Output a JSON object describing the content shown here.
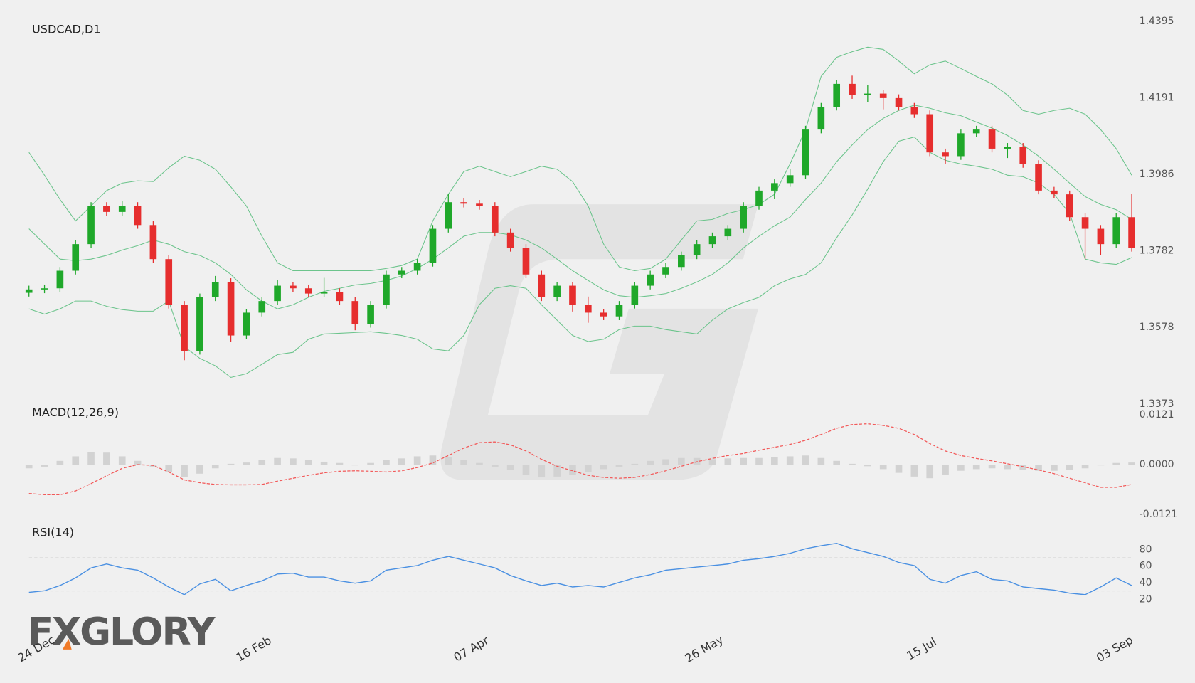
{
  "logo": "FXGLORY",
  "chart_data": [
    {
      "type": "candlestick",
      "title": "USDCAD,D1",
      "categories": [
        "24 Dec",
        null,
        null,
        null,
        null,
        null,
        null,
        null,
        null,
        null,
        null,
        null,
        null,
        null,
        "16 Feb",
        null,
        null,
        null,
        null,
        null,
        null,
        null,
        null,
        null,
        null,
        null,
        null,
        null,
        "07 Apr",
        null,
        null,
        null,
        null,
        null,
        null,
        null,
        null,
        null,
        null,
        null,
        null,
        null,
        null,
        "26 May",
        null,
        null,
        null,
        null,
        null,
        null,
        null,
        null,
        null,
        null,
        null,
        null,
        null,
        "15 Jul",
        null,
        null,
        null,
        null,
        null,
        null,
        null,
        null,
        null,
        null,
        null,
        null,
        null,
        "03 Sep"
      ],
      "open": [
        1.367,
        1.3679,
        1.3682,
        1.3729,
        1.38,
        1.3902,
        1.3886,
        1.3902,
        1.3851,
        1.376,
        1.3638,
        1.3515,
        1.3658,
        1.3699,
        1.3556,
        1.3617,
        1.3648,
        1.3689,
        1.3682,
        1.3668,
        1.3672,
        1.3648,
        1.3587,
        1.3638,
        1.3719,
        1.3729,
        1.375,
        1.3841,
        1.3912,
        1.3908,
        1.3902,
        1.3831,
        1.379,
        1.3719,
        1.3658,
        1.3689,
        1.3638,
        1.3617,
        1.3607,
        1.3638,
        1.3689,
        1.3719,
        1.3739,
        1.377,
        1.38,
        1.3821,
        1.3841,
        1.3902,
        1.3943,
        1.3963,
        1.3984,
        1.4106,
        1.4167,
        1.4228,
        1.4198,
        1.4202,
        1.419,
        1.4167,
        1.4147,
        1.4045,
        1.4035,
        1.4096,
        1.4106,
        1.4055,
        1.406,
        1.4014,
        1.3943,
        1.3933,
        1.3872,
        1.3841,
        1.38,
        1.3872
      ],
      "high": [
        1.3689,
        1.3692,
        1.3739,
        1.381,
        1.3912,
        1.3912,
        1.3915,
        1.3912,
        1.3861,
        1.377,
        1.3648,
        1.3668,
        1.3715,
        1.3709,
        1.3627,
        1.3658,
        1.3705,
        1.3699,
        1.3692,
        1.371,
        1.3682,
        1.3658,
        1.3648,
        1.3729,
        1.3739,
        1.376,
        1.3851,
        1.3935,
        1.3922,
        1.3918,
        1.3912,
        1.3841,
        1.38,
        1.3729,
        1.3699,
        1.3699,
        1.366,
        1.3627,
        1.3648,
        1.3699,
        1.3729,
        1.3749,
        1.378,
        1.381,
        1.3831,
        1.3851,
        1.3912,
        1.3953,
        1.3973,
        1.4,
        1.4116,
        1.4177,
        1.4238,
        1.425,
        1.4225,
        1.4212,
        1.42,
        1.4177,
        1.4157,
        1.4055,
        1.4106,
        1.4116,
        1.4116,
        1.407,
        1.407,
        1.4024,
        1.3953,
        1.3943,
        1.3882,
        1.3851,
        1.3882,
        1.3935
      ],
      "low": [
        1.366,
        1.3669,
        1.3672,
        1.3719,
        1.379,
        1.3876,
        1.3876,
        1.3841,
        1.375,
        1.3628,
        1.349,
        1.3505,
        1.3648,
        1.354,
        1.3546,
        1.3607,
        1.3638,
        1.3672,
        1.3658,
        1.3658,
        1.3638,
        1.357,
        1.3577,
        1.3628,
        1.3709,
        1.3719,
        1.374,
        1.3831,
        1.3898,
        1.3892,
        1.3821,
        1.378,
        1.3709,
        1.3648,
        1.3648,
        1.362,
        1.359,
        1.3597,
        1.3597,
        1.3628,
        1.3679,
        1.3709,
        1.3729,
        1.376,
        1.379,
        1.3811,
        1.3831,
        1.3892,
        1.392,
        1.3953,
        1.3974,
        1.4096,
        1.4157,
        1.4188,
        1.418,
        1.416,
        1.4157,
        1.4137,
        1.4035,
        1.4015,
        1.4025,
        1.4086,
        1.4045,
        1.403,
        1.4004,
        1.3933,
        1.3923,
        1.3862,
        1.376,
        1.377,
        1.379,
        1.378
      ],
      "close": [
        1.3679,
        1.3682,
        1.3729,
        1.38,
        1.3902,
        1.3886,
        1.3902,
        1.3851,
        1.376,
        1.3638,
        1.3515,
        1.3658,
        1.3699,
        1.3556,
        1.3617,
        1.3648,
        1.3689,
        1.3682,
        1.3668,
        1.3672,
        1.3648,
        1.3587,
        1.3638,
        1.3719,
        1.3729,
        1.375,
        1.3841,
        1.3912,
        1.3908,
        1.3902,
        1.3831,
        1.379,
        1.3719,
        1.3658,
        1.3689,
        1.3638,
        1.3617,
        1.3607,
        1.3638,
        1.3689,
        1.3719,
        1.3739,
        1.377,
        1.38,
        1.3821,
        1.3841,
        1.3902,
        1.3943,
        1.3963,
        1.3984,
        1.4106,
        1.4167,
        1.4228,
        1.4198,
        1.4202,
        1.419,
        1.4167,
        1.4147,
        1.4045,
        1.4035,
        1.4096,
        1.4106,
        1.4055,
        1.406,
        1.4014,
        1.3943,
        1.3933,
        1.3872,
        1.3841,
        1.38,
        1.3872,
        1.379
      ],
      "up_color": "#1fa82a",
      "down_color": "#e62e2e",
      "bollinger": {
        "color": "#6cc48c",
        "upper": [
          1.4045,
          1.3984,
          1.3919,
          1.3862,
          1.3902,
          1.3943,
          1.3963,
          1.3969,
          1.3967,
          1.4004,
          1.4035,
          1.4024,
          1.4,
          1.3953,
          1.3902,
          1.3821,
          1.375,
          1.3729,
          1.3729,
          1.3729,
          1.3729,
          1.3729,
          1.3729,
          1.3735,
          1.3743,
          1.376,
          1.3862,
          1.3933,
          1.3994,
          1.4008,
          1.3994,
          1.398,
          1.3994,
          1.4008,
          1.4,
          1.3967,
          1.3902,
          1.38,
          1.3739,
          1.3729,
          1.3735,
          1.376,
          1.3811,
          1.3862,
          1.3866,
          1.3882,
          1.3892,
          1.3906,
          1.3933,
          1.4014,
          1.4106,
          1.4248,
          1.4299,
          1.4314,
          1.4326,
          1.432,
          1.4289,
          1.4255,
          1.4279,
          1.4289,
          1.4269,
          1.4248,
          1.4228,
          1.4198,
          1.4157,
          1.4147,
          1.4157,
          1.4163,
          1.4147,
          1.4106,
          1.4055,
          1.3984
        ],
        "middle": [
          1.3841,
          1.38,
          1.376,
          1.3756,
          1.376,
          1.377,
          1.3784,
          1.3796,
          1.3811,
          1.38,
          1.378,
          1.377,
          1.375,
          1.3719,
          1.3678,
          1.3648,
          1.3627,
          1.3638,
          1.3658,
          1.3674,
          1.3682,
          1.3691,
          1.3695,
          1.3703,
          1.3715,
          1.3735,
          1.376,
          1.379,
          1.3821,
          1.3831,
          1.3831,
          1.3825,
          1.3811,
          1.379,
          1.376,
          1.3729,
          1.3703,
          1.3678,
          1.3662,
          1.3658,
          1.3662,
          1.3668,
          1.3682,
          1.3699,
          1.3719,
          1.375,
          1.379,
          1.3821,
          1.3849,
          1.3872,
          1.3919,
          1.3963,
          1.402,
          1.4065,
          1.4106,
          1.4136,
          1.4157,
          1.4171,
          1.4163,
          1.4151,
          1.4143,
          1.4126,
          1.411,
          1.409,
          1.4065,
          1.4035,
          1.4,
          1.3963,
          1.3927,
          1.3906,
          1.3892,
          1.3866
        ],
        "lower": [
          1.3627,
          1.3613,
          1.3627,
          1.3648,
          1.3648,
          1.3634,
          1.3625,
          1.3621,
          1.3621,
          1.3648,
          1.3526,
          1.3495,
          1.3475,
          1.3444,
          1.3454,
          1.3479,
          1.3505,
          1.3511,
          1.3546,
          1.356,
          1.3562,
          1.3564,
          1.3566,
          1.3562,
          1.3556,
          1.3546,
          1.352,
          1.3515,
          1.3556,
          1.3638,
          1.3682,
          1.3689,
          1.3682,
          1.3638,
          1.3597,
          1.3556,
          1.354,
          1.3546,
          1.3572,
          1.3581,
          1.3581,
          1.3572,
          1.3566,
          1.356,
          1.3597,
          1.3627,
          1.3644,
          1.3658,
          1.3689,
          1.3707,
          1.3719,
          1.375,
          1.3817,
          1.3878,
          1.3947,
          1.402,
          1.4075,
          1.4086,
          1.4045,
          1.4024,
          1.4014,
          1.4008,
          1.4,
          1.3984,
          1.398,
          1.3963,
          1.3933,
          1.3882,
          1.376,
          1.375,
          1.3746,
          1.3764
        ]
      },
      "ylim": [
        1.3373,
        1.4395
      ],
      "yticks": [
        1.4395,
        1.4191,
        1.3986,
        1.3782,
        1.3578,
        1.3373
      ]
    },
    {
      "type": "macd",
      "title": "MACD(12,26,9)",
      "histogram": [
        -0.0009,
        -0.0005,
        0.0009,
        0.002,
        0.0031,
        0.0029,
        0.002,
        0.0009,
        -0.0005,
        -0.0018,
        -0.0031,
        -0.0022,
        -0.0009,
        0.0002,
        0.0005,
        0.0011,
        0.0016,
        0.0015,
        0.0011,
        0.0007,
        0.0004,
        -0.0002,
        0.0004,
        0.0011,
        0.0015,
        0.002,
        0.0022,
        0.0018,
        0.0011,
        0.0004,
        -0.0005,
        -0.0013,
        -0.0024,
        -0.0031,
        -0.0029,
        -0.0024,
        -0.0018,
        -0.0011,
        -0.0005,
        0.0002,
        0.0009,
        0.0013,
        0.0016,
        0.0016,
        0.0013,
        0.0015,
        0.0016,
        0.0016,
        0.0018,
        0.002,
        0.0022,
        0.0016,
        0.0009,
        0.0002,
        -0.0004,
        -0.0011,
        -0.002,
        -0.0029,
        -0.0033,
        -0.0024,
        -0.0015,
        -0.0011,
        -0.0009,
        -0.0011,
        -0.0013,
        -0.0015,
        -0.0015,
        -0.0013,
        -0.0009,
        -0.0002,
        0.0004,
        0.0005
      ],
      "signal": [
        -0.007,
        -0.0073,
        -0.0073,
        -0.0064,
        -0.0046,
        -0.0027,
        -0.0009,
        0,
        -0.0002,
        -0.0018,
        -0.0037,
        -0.0044,
        -0.0048,
        -0.0049,
        -0.0049,
        -0.0048,
        -0.004,
        -0.0033,
        -0.0026,
        -0.002,
        -0.0016,
        -0.0015,
        -0.0016,
        -0.0018,
        -0.0015,
        -0.0007,
        0.0004,
        0.0022,
        0.004,
        0.0053,
        0.0055,
        0.0048,
        0.0033,
        0.0013,
        -0.0004,
        -0.0015,
        -0.0026,
        -0.0031,
        -0.0033,
        -0.0031,
        -0.0024,
        -0.0015,
        -0.0004,
        0.0007,
        0.0015,
        0.0022,
        0.0027,
        0.0035,
        0.0042,
        0.0049,
        0.0059,
        0.0073,
        0.0088,
        0.0097,
        0.0099,
        0.0095,
        0.0088,
        0.0073,
        0.0051,
        0.0033,
        0.0022,
        0.0015,
        0.0009,
        0.0002,
        -0.0005,
        -0.0013,
        -0.0022,
        -0.0033,
        -0.0044,
        -0.0055,
        -0.0055,
        -0.0048
      ],
      "histogram_color": "#d2d2d2",
      "signal_color": "#f25a5a",
      "ylim": [
        -0.0121,
        0.0121
      ],
      "yticks": [
        0.0121,
        {
          "value": 0,
          "label": "0.0000"
        },
        -0.0121
      ]
    },
    {
      "type": "line",
      "title": "RSI(14)",
      "values": [
        28.3,
        30.2,
        36.6,
        45.8,
        57.8,
        62.5,
        57.8,
        55.1,
        45.8,
        34.8,
        25.5,
        38.5,
        44.0,
        30.2,
        36.6,
        42.2,
        50.5,
        51.4,
        46.8,
        46.8,
        42.2,
        39.4,
        42.2,
        55.1,
        57.8,
        60.6,
        67.1,
        71.7,
        67.1,
        62.5,
        57.8,
        48.6,
        42.2,
        36.6,
        39.4,
        34.8,
        36.6,
        34.8,
        40.3,
        45.8,
        49.5,
        55.1,
        56.9,
        58.8,
        60.6,
        62.5,
        67.1,
        68.9,
        71.7,
        75.4,
        80.9,
        84.6,
        87.4,
        80.9,
        76.3,
        71.7,
        64.3,
        60.6,
        44.0,
        39.4,
        48.6,
        53.2,
        44.0,
        42.2,
        34.8,
        32.9,
        31.1,
        27.4,
        25.5,
        34.8,
        45.8,
        36.6
      ],
      "color": "#4a90e2",
      "levels": [
        30,
        70
      ],
      "level_color": "#cfcfcf",
      "ylim": [
        10,
        90
      ],
      "yticks": [
        80,
        60,
        40,
        20
      ]
    }
  ]
}
